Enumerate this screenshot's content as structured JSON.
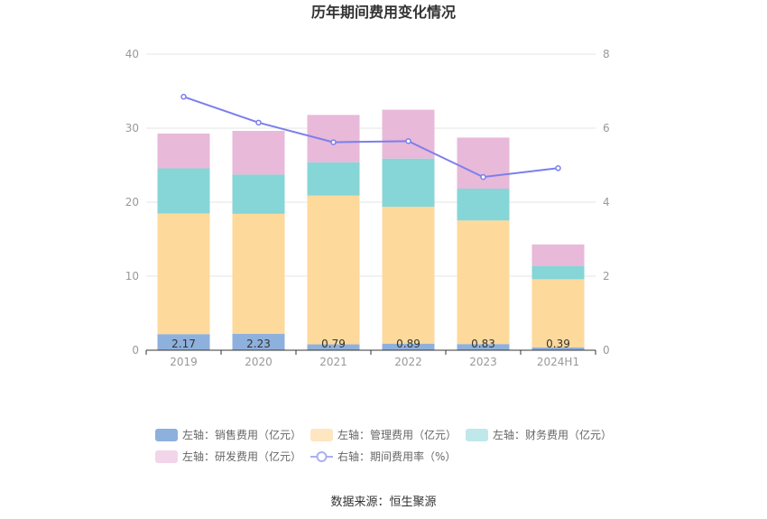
{
  "chart_data": {
    "type": "bar",
    "title": "历年期间费用变化情况",
    "categories": [
      "2019",
      "2020",
      "2021",
      "2022",
      "2023",
      "2024H1"
    ],
    "left_axis": {
      "ylim": [
        0,
        40
      ],
      "ticks": [
        "0",
        "10",
        "20",
        "30",
        "40"
      ]
    },
    "right_axis": {
      "ylim": [
        0,
        8
      ],
      "ticks": [
        "0",
        "2",
        "4",
        "6",
        "8"
      ]
    },
    "grid": true,
    "stacked": true,
    "series": [
      {
        "name": "左轴：销售费用（亿元）",
        "axis": "left",
        "type": "bar",
        "color": "#8eb0dc",
        "values": [
          2.17,
          2.23,
          0.79,
          0.89,
          0.83,
          0.39
        ],
        "labels": [
          "2.17",
          "2.23",
          "0.79",
          "0.89",
          "0.83",
          "0.39"
        ]
      },
      {
        "name": "左轴：管理费用（亿元）",
        "axis": "left",
        "type": "bar",
        "color": "#fdd99b",
        "values": [
          16.3,
          16.2,
          20.1,
          18.5,
          16.7,
          9.2
        ]
      },
      {
        "name": "左轴：财务费用（亿元）",
        "axis": "left",
        "type": "bar",
        "color": "#86d5d7",
        "values": [
          6.1,
          5.3,
          4.5,
          6.5,
          4.3,
          1.8
        ]
      },
      {
        "name": "左轴：研发费用（亿元）",
        "axis": "left",
        "type": "bar",
        "color": "#e8b9d9",
        "values": [
          4.7,
          5.9,
          6.4,
          6.6,
          6.9,
          2.9
        ]
      },
      {
        "name": "右轴：期间费用率（%）",
        "axis": "right",
        "type": "line",
        "color": "#7b7fec",
        "values": [
          6.85,
          6.15,
          5.62,
          5.65,
          4.68,
          4.92
        ]
      }
    ],
    "legend_position": "bottom"
  },
  "footer": {
    "source": "数据来源：恒生聚源"
  }
}
